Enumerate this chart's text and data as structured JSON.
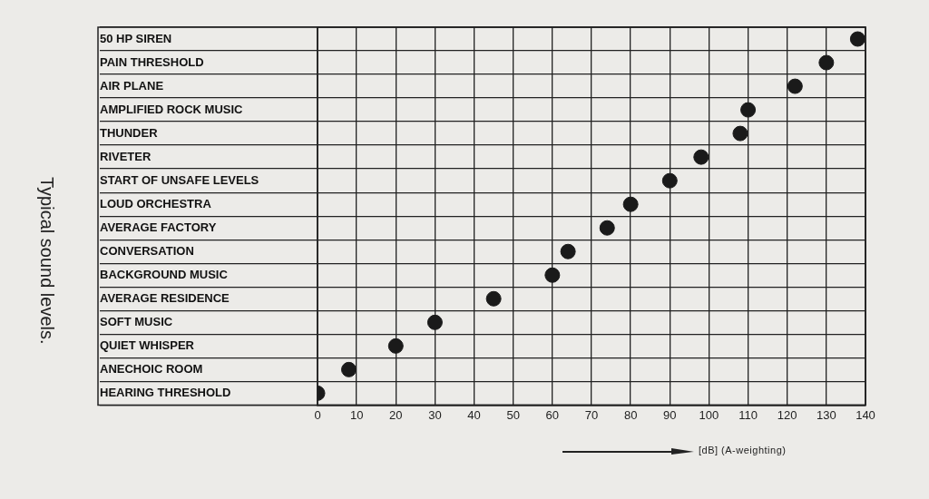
{
  "chart_data": {
    "type": "scatter",
    "orientation": "horizontal",
    "title": "Typical sound levels.",
    "xlabel": "[dB] (A-weighting)",
    "categories": [
      "50 HP SIREN",
      "PAIN THRESHOLD",
      "AIR PLANE",
      "AMPLIFIED ROCK MUSIC",
      "THUNDER",
      "RIVETER",
      "START OF UNSAFE LEVELS",
      "LOUD ORCHESTRA",
      "AVERAGE FACTORY",
      "CONVERSATION",
      "BACKGROUND MUSIC",
      "AVERAGE RESIDENCE",
      "SOFT MUSIC",
      "QUIET WHISPER",
      "ANECHOIC ROOM",
      "HEARING THRESHOLD"
    ],
    "values": [
      138,
      130,
      122,
      110,
      108,
      98,
      90,
      80,
      74,
      64,
      60,
      45,
      30,
      20,
      8,
      0
    ],
    "color": "#1a1a1a",
    "marker": "circle",
    "grid": true,
    "xlim": [
      0,
      140
    ],
    "xticks": [
      0,
      10,
      20,
      30,
      40,
      50,
      60,
      70,
      80,
      90,
      100,
      110,
      120,
      130,
      140
    ]
  }
}
